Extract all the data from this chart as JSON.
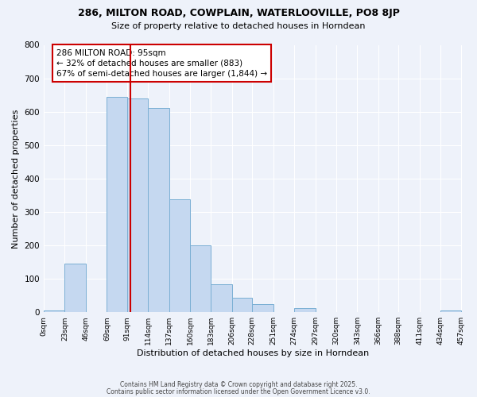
{
  "title": "286, MILTON ROAD, COWPLAIN, WATERLOOVILLE, PO8 8JP",
  "subtitle": "Size of property relative to detached houses in Horndean",
  "xlabel": "Distribution of detached houses by size in Horndean",
  "ylabel": "Number of detached properties",
  "bar_color": "#c5d8f0",
  "bar_edge_color": "#7aafd4",
  "bin_edges": [
    0,
    23,
    46,
    69,
    91,
    114,
    137,
    160,
    183,
    206,
    228,
    251,
    274,
    297,
    320,
    343,
    366,
    388,
    411,
    434,
    457
  ],
  "bin_labels": [
    "0sqm",
    "23sqm",
    "46sqm",
    "69sqm",
    "91sqm",
    "114sqm",
    "137sqm",
    "160sqm",
    "183sqm",
    "206sqm",
    "228sqm",
    "251sqm",
    "274sqm",
    "297sqm",
    "320sqm",
    "343sqm",
    "366sqm",
    "388sqm",
    "411sqm",
    "434sqm",
    "457sqm"
  ],
  "bar_heights": [
    5,
    145,
    0,
    645,
    640,
    610,
    338,
    200,
    83,
    43,
    25,
    0,
    12,
    0,
    0,
    0,
    0,
    0,
    0,
    5
  ],
  "vline_x": 95,
  "vline_color": "#cc0000",
  "annotation_title": "286 MILTON ROAD: 95sqm",
  "annotation_line1": "← 32% of detached houses are smaller (883)",
  "annotation_line2": "67% of semi-detached houses are larger (1,844) →",
  "ylim": [
    0,
    800
  ],
  "yticks": [
    0,
    100,
    200,
    300,
    400,
    500,
    600,
    700,
    800
  ],
  "background_color": "#eef2fa",
  "grid_color": "#ffffff",
  "footer1": "Contains HM Land Registry data © Crown copyright and database right 2025.",
  "footer2": "Contains public sector information licensed under the Open Government Licence v3.0."
}
